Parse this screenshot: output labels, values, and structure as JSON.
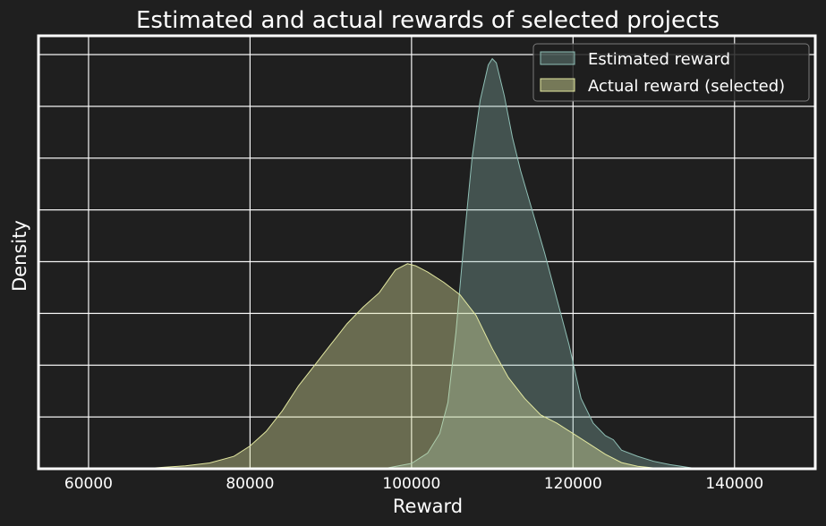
{
  "chart_data": {
    "type": "area",
    "title": "Estimated and actual rewards of selected projects",
    "xlabel": "Reward",
    "ylabel": "Density",
    "xlim": [
      53800,
      150000
    ],
    "ylim": [
      0,
      1.0
    ],
    "xticks": [
      60000,
      80000,
      100000,
      120000,
      140000
    ],
    "yticks": [
      0.125,
      0.25,
      0.375,
      0.5,
      0.625,
      0.75,
      0.875,
      1.0
    ],
    "show_ytick_labels": false,
    "grid": true,
    "legend_position": "upper-right",
    "series": [
      {
        "name": "Estimated reward",
        "color": "#8fbfb5",
        "fill": "#3a4f4b",
        "points": [
          [
            95000,
            0.0
          ],
          [
            97000,
            0.002
          ],
          [
            100000,
            0.013
          ],
          [
            102000,
            0.038
          ],
          [
            103500,
            0.085
          ],
          [
            104500,
            0.16
          ],
          [
            105500,
            0.33
          ],
          [
            106500,
            0.55
          ],
          [
            107500,
            0.75
          ],
          [
            108500,
            0.89
          ],
          [
            109500,
            0.975
          ],
          [
            110000,
            0.99
          ],
          [
            110500,
            0.98
          ],
          [
            111500,
            0.9
          ],
          [
            112500,
            0.8
          ],
          [
            113500,
            0.72
          ],
          [
            115000,
            0.62
          ],
          [
            116500,
            0.52
          ],
          [
            118000,
            0.41
          ],
          [
            119500,
            0.3
          ],
          [
            121000,
            0.17
          ],
          [
            122500,
            0.11
          ],
          [
            124000,
            0.08
          ],
          [
            125000,
            0.07
          ],
          [
            126000,
            0.045
          ],
          [
            128000,
            0.03
          ],
          [
            130000,
            0.018
          ],
          [
            132000,
            0.01
          ],
          [
            134000,
            0.004
          ],
          [
            135500,
            0.0
          ]
        ]
      },
      {
        "name": "Actual reward (selected)",
        "color": "#e3e8a0",
        "fill": "#5f5e44",
        "points": [
          [
            66000,
            0.0
          ],
          [
            68000,
            0.002
          ],
          [
            72000,
            0.007
          ],
          [
            75000,
            0.014
          ],
          [
            78000,
            0.03
          ],
          [
            80000,
            0.055
          ],
          [
            82000,
            0.09
          ],
          [
            84000,
            0.14
          ],
          [
            86000,
            0.2
          ],
          [
            88000,
            0.25
          ],
          [
            90000,
            0.3
          ],
          [
            92000,
            0.35
          ],
          [
            94000,
            0.39
          ],
          [
            96000,
            0.425
          ],
          [
            98000,
            0.48
          ],
          [
            99500,
            0.495
          ],
          [
            100500,
            0.49
          ],
          [
            102000,
            0.475
          ],
          [
            104000,
            0.45
          ],
          [
            106000,
            0.42
          ],
          [
            108000,
            0.37
          ],
          [
            110000,
            0.29
          ],
          [
            112000,
            0.22
          ],
          [
            114000,
            0.17
          ],
          [
            116000,
            0.13
          ],
          [
            118000,
            0.11
          ],
          [
            120000,
            0.085
          ],
          [
            122000,
            0.06
          ],
          [
            124000,
            0.035
          ],
          [
            126000,
            0.015
          ],
          [
            128000,
            0.006
          ],
          [
            131000,
            0.0
          ]
        ]
      }
    ]
  }
}
